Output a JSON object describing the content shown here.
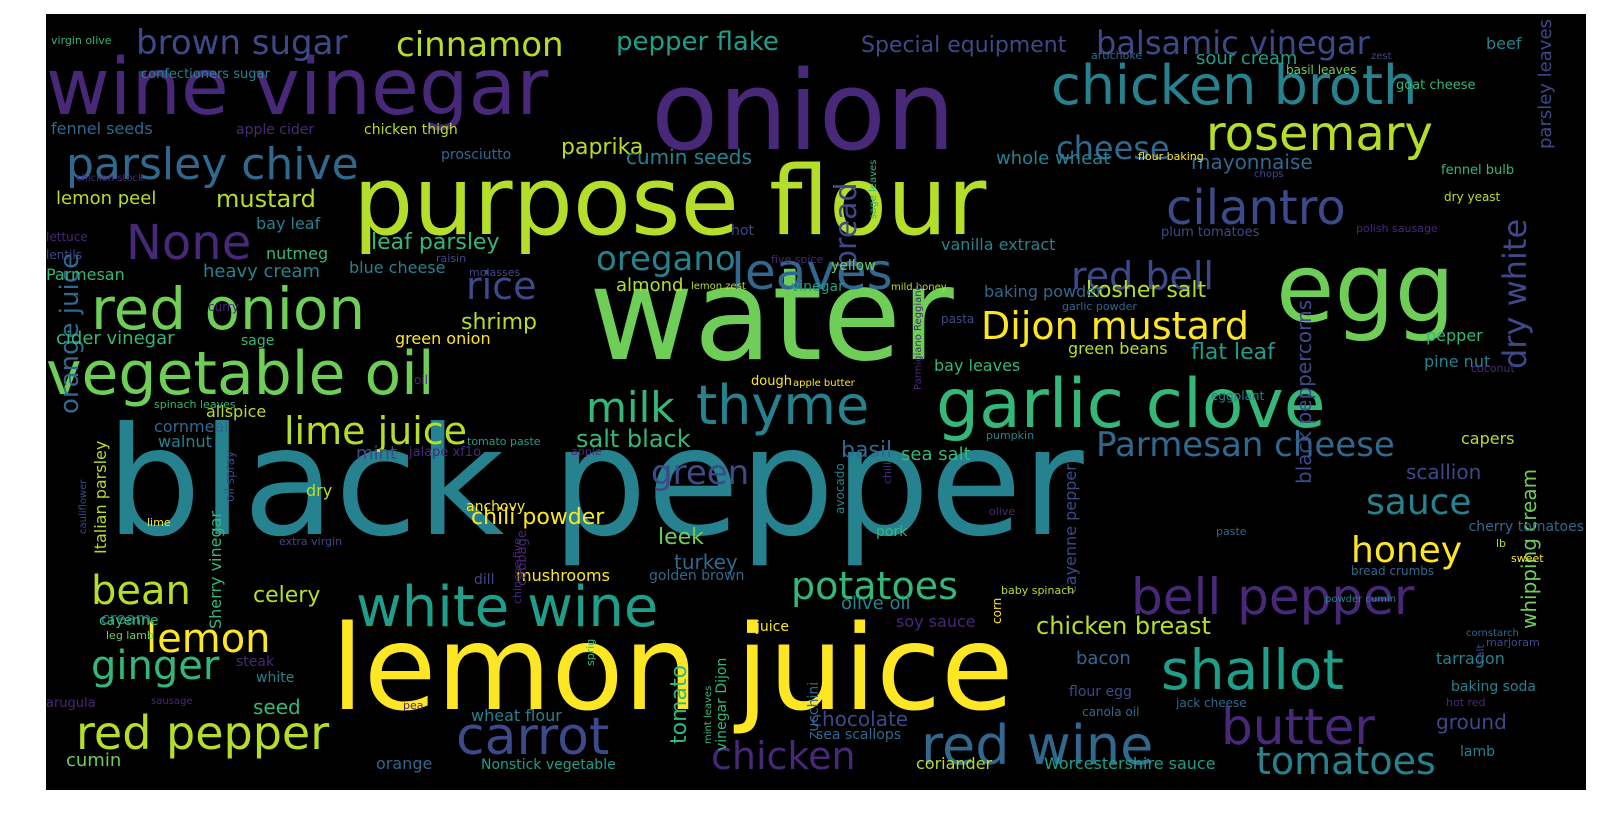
{
  "word_cloud": {
    "background": "#000000",
    "palette": [
      "#fde725",
      "#b5de2b",
      "#6ece58",
      "#35b779",
      "#1f9e89",
      "#26828e",
      "#31688e",
      "#3e4989",
      "#482878",
      "#440154"
    ],
    "words": [
      {
        "text": "black pepper",
        "color": "#26828e"
      },
      {
        "text": "lemon juice",
        "color": "#fde725"
      },
      {
        "text": "water",
        "color": "#6ece58"
      },
      {
        "text": "onion",
        "color": "#482878"
      },
      {
        "text": "egg",
        "color": "#6ece58"
      },
      {
        "text": "purpose flour",
        "color": "#b5de2b"
      },
      {
        "text": "wine vinegar",
        "color": "#482878"
      },
      {
        "text": "garlic clove",
        "color": "#35b779"
      },
      {
        "text": "vegetable oil",
        "color": "#6ece58"
      },
      {
        "text": "red onion",
        "color": "#6ece58"
      },
      {
        "text": "chicken broth",
        "color": "#26828e"
      },
      {
        "text": "white wine",
        "color": "#1f9e89"
      },
      {
        "text": "bell pepper",
        "color": "#482878"
      },
      {
        "text": "red wine",
        "color": "#31688e"
      },
      {
        "text": "shallot",
        "color": "#1f9e89"
      },
      {
        "text": "red pepper",
        "color": "#b5de2b"
      },
      {
        "text": "thyme",
        "color": "#26828e"
      },
      {
        "text": "rosemary",
        "color": "#b5de2b"
      },
      {
        "text": "carrot",
        "color": "#3e4989"
      },
      {
        "text": "butter",
        "color": "#482878"
      },
      {
        "text": "cilantro",
        "color": "#3e4989"
      },
      {
        "text": "Dijon mustard",
        "color": "#fde725"
      },
      {
        "text": "leaves",
        "color": "#31688e"
      },
      {
        "text": "red bell",
        "color": "#3e4989"
      },
      {
        "text": "Parmesan cheese",
        "color": "#31688e"
      },
      {
        "text": "parsley chive",
        "color": "#31688e"
      },
      {
        "text": "None",
        "color": "#482878"
      },
      {
        "text": "ginger",
        "color": "#35b779"
      },
      {
        "text": "lemon",
        "color": "#fde725"
      },
      {
        "text": "lime juice",
        "color": "#b5de2b"
      },
      {
        "text": "potatoes",
        "color": "#35b779"
      },
      {
        "text": "tomatoes",
        "color": "#26828e"
      },
      {
        "text": "chicken",
        "color": "#482878"
      },
      {
        "text": "milk",
        "color": "#35b779"
      },
      {
        "text": "bean",
        "color": "#b5de2b"
      },
      {
        "text": "honey",
        "color": "#fde725"
      },
      {
        "text": "sauce",
        "color": "#26828e"
      },
      {
        "text": "rice",
        "color": "#3e4989"
      },
      {
        "text": "oregano",
        "color": "#26828e"
      },
      {
        "text": "cinnamon",
        "color": "#b5de2b"
      },
      {
        "text": "brown sugar",
        "color": "#3e4989"
      },
      {
        "text": "balsamic vinegar",
        "color": "#3e4989"
      },
      {
        "text": "cheese",
        "color": "#31688e"
      },
      {
        "text": "dry white",
        "color": "#3e4989"
      },
      {
        "text": "green",
        "color": "#3e4989"
      },
      {
        "text": "bread",
        "color": "#3e4989"
      },
      {
        "text": "pepper flake",
        "color": "#1f9e89"
      },
      {
        "text": "Special equipment",
        "color": "#3e4989"
      },
      {
        "text": "chicken breast",
        "color": "#b5de2b"
      },
      {
        "text": "chili powder",
        "color": "#fde725"
      },
      {
        "text": "salt black",
        "color": "#35b779"
      },
      {
        "text": "shrimp",
        "color": "#b5de2b"
      },
      {
        "text": "mustard",
        "color": "#b5de2b"
      },
      {
        "text": "paprika",
        "color": "#b5de2b"
      },
      {
        "text": "leaf parsley",
        "color": "#35b779"
      },
      {
        "text": "kosher salt",
        "color": "#b5de2b"
      },
      {
        "text": "leek",
        "color": "#6ece58"
      },
      {
        "text": "celery",
        "color": "#b5de2b"
      },
      {
        "text": "chocolate",
        "color": "#3e4989"
      },
      {
        "text": "tomato",
        "color": "#35b779"
      },
      {
        "text": "basil",
        "color": "#31688e"
      },
      {
        "text": "turkey",
        "color": "#31688e"
      },
      {
        "text": "orange juice",
        "color": "#31688e"
      },
      {
        "text": "whipping cream",
        "color": "#6ece58"
      },
      {
        "text": "black peppercorns",
        "color": "#3e4989"
      },
      {
        "text": "parsley leaves",
        "color": "#3e4989"
      },
      {
        "text": "flat leaf",
        "color": "#1f9e89"
      },
      {
        "text": "sour cream",
        "color": "#1f9e89"
      },
      {
        "text": "mayonnaise",
        "color": "#31688e"
      },
      {
        "text": "cumin seeds",
        "color": "#26828e"
      },
      {
        "text": "whole wheat",
        "color": "#26828e"
      },
      {
        "text": "heavy cream",
        "color": "#26828e"
      },
      {
        "text": "cider vinegar",
        "color": "#35b779"
      },
      {
        "text": "lemon peel",
        "color": "#b5de2b"
      },
      {
        "text": "bay leaf",
        "color": "#26828e"
      },
      {
        "text": "nutmeg",
        "color": "#35b779"
      },
      {
        "text": "almond",
        "color": "#b5de2b"
      },
      {
        "text": "scallion",
        "color": "#3e4989"
      },
      {
        "text": "bacon",
        "color": "#31688e"
      },
      {
        "text": "ground",
        "color": "#3e4989"
      },
      {
        "text": "Worcestershire sauce",
        "color": "#1f9e89"
      },
      {
        "text": "coriander",
        "color": "#b5de2b"
      },
      {
        "text": "mushrooms",
        "color": "#fde725"
      },
      {
        "text": "seed",
        "color": "#35b779"
      },
      {
        "text": "cumin",
        "color": "#6ece58"
      },
      {
        "text": "mint",
        "color": "#3e4989"
      },
      {
        "text": "sea salt",
        "color": "#35b779"
      },
      {
        "text": "olive oil",
        "color": "#26828e"
      },
      {
        "text": "soy sauce",
        "color": "#482878"
      },
      {
        "text": "cayenne pepper",
        "color": "#3e4989"
      },
      {
        "text": "Sherry vinegar",
        "color": "#35b779"
      },
      {
        "text": "Italian parsley",
        "color": "#b5de2b"
      },
      {
        "text": "cream",
        "color": "#26828e"
      },
      {
        "text": "allspice",
        "color": "#b5de2b"
      },
      {
        "text": "cornmeal",
        "color": "#31688e"
      },
      {
        "text": "walnut",
        "color": "#26828e"
      },
      {
        "text": "orange",
        "color": "#31688e"
      },
      {
        "text": "wheat flour",
        "color": "#26828e"
      },
      {
        "text": "Nonstick vegetable",
        "color": "#1f9e89"
      },
      {
        "text": "vinegar Dijon",
        "color": "#35b779"
      },
      {
        "text": "zucchini",
        "color": "#31688e"
      },
      {
        "text": "sea scallops",
        "color": "#31688e"
      },
      {
        "text": "vanilla extract",
        "color": "#26828e"
      },
      {
        "text": "baking powder",
        "color": "#31688e"
      },
      {
        "text": "green beans",
        "color": "#b5de2b"
      },
      {
        "text": "bay leaves",
        "color": "#35b779"
      },
      {
        "text": "pepper",
        "color": "#35b779"
      },
      {
        "text": "pine nut",
        "color": "#26828e"
      },
      {
        "text": "flour egg",
        "color": "#3e4989"
      },
      {
        "text": "canola oil",
        "color": "#31688e"
      },
      {
        "text": "jack cheese",
        "color": "#31688e"
      },
      {
        "text": "tarragon",
        "color": "#26828e"
      },
      {
        "text": "baking soda",
        "color": "#26828e"
      },
      {
        "text": "lamb",
        "color": "#26828e"
      },
      {
        "text": "capers",
        "color": "#b5de2b"
      },
      {
        "text": "cherry tomatoes",
        "color": "#31688e"
      },
      {
        "text": "blue cheese",
        "color": "#26828e"
      },
      {
        "text": "green onion",
        "color": "#fde725"
      },
      {
        "text": "sage",
        "color": "#35b779"
      },
      {
        "text": "Parmesan",
        "color": "#35b779"
      },
      {
        "text": "lentils",
        "color": "#3e4989"
      },
      {
        "text": "lettuce",
        "color": "#482878"
      },
      {
        "text": "fennel seeds",
        "color": "#31688e"
      },
      {
        "text": "apple cider",
        "color": "#482878"
      },
      {
        "text": "chicken thigh",
        "color": "#b5de2b"
      },
      {
        "text": "prosciutto",
        "color": "#31688e"
      },
      {
        "text": "chicken stock",
        "color": "#482878"
      },
      {
        "text": "confectioners sugar",
        "color": "#26828e"
      },
      {
        "text": "virgin olive",
        "color": "#35b779"
      },
      {
        "text": "artichoke",
        "color": "#31688e"
      },
      {
        "text": "basil leaves",
        "color": "#6ece58"
      },
      {
        "text": "zest",
        "color": "#3e4989"
      },
      {
        "text": "goat cheese",
        "color": "#35b779"
      },
      {
        "text": "beef",
        "color": "#26828e"
      },
      {
        "text": "fennel bulb",
        "color": "#35b779"
      },
      {
        "text": "dry yeast",
        "color": "#b5de2b"
      },
      {
        "text": "flour baking",
        "color": "#fde725"
      },
      {
        "text": "chops",
        "color": "#3e4989"
      },
      {
        "text": "plum tomatoes",
        "color": "#3e4989"
      },
      {
        "text": "polish sausage",
        "color": "#482878"
      },
      {
        "text": "sage leaves",
        "color": "#35b779"
      },
      {
        "text": "hot",
        "color": "#3e4989"
      },
      {
        "text": "yellow",
        "color": "#6ece58"
      },
      {
        "text": "vinegar",
        "color": "#1f9e89"
      },
      {
        "text": "mild honey",
        "color": "#b5de2b"
      },
      {
        "text": "lemon zest",
        "color": "#b5de2b"
      },
      {
        "text": "five spice",
        "color": "#482878"
      },
      {
        "text": "raisin",
        "color": "#3e4989"
      },
      {
        "text": "molasses",
        "color": "#3e4989"
      },
      {
        "text": "curry",
        "color": "#482878"
      },
      {
        "text": "garlic powder",
        "color": "#31688e"
      },
      {
        "text": "pasta",
        "color": "#3e4989"
      },
      {
        "text": "coconut",
        "color": "#482878"
      },
      {
        "text": "Parmigiano Reggiano",
        "color": "#482878"
      },
      {
        "text": "oil",
        "color": "#482878"
      },
      {
        "text": "dough",
        "color": "#fde725"
      },
      {
        "text": "apple butter",
        "color": "#fde725"
      },
      {
        "text": "spinach leaves",
        "color": "#35b779"
      },
      {
        "text": "tomato paste",
        "color": "#1f9e89"
      },
      {
        "text": "eggplant",
        "color": "#26828e"
      },
      {
        "text": "extra virgin",
        "color": "#3e4989"
      },
      {
        "text": "jalape xf1o",
        "color": "#482878"
      },
      {
        "text": "apple",
        "color": "#482878"
      },
      {
        "text": "pumpkin",
        "color": "#26828e"
      },
      {
        "text": "chili",
        "color": "#482878"
      },
      {
        "text": "oil spray",
        "color": "#3e4989"
      },
      {
        "text": "dry",
        "color": "#b5de2b"
      },
      {
        "text": "anchovy",
        "color": "#fde725"
      },
      {
        "text": "lime",
        "color": "#fde725"
      },
      {
        "text": "cauliflower",
        "color": "#3e4989"
      },
      {
        "text": "dill",
        "color": "#3e4989"
      },
      {
        "text": "cabbage",
        "color": "#482878"
      },
      {
        "text": "chinese five",
        "color": "#482878"
      },
      {
        "text": "avocado",
        "color": "#26828e"
      },
      {
        "text": "pork",
        "color": "#35b779"
      },
      {
        "text": "olive",
        "color": "#482878"
      },
      {
        "text": "paste",
        "color": "#31688e"
      },
      {
        "text": "lb",
        "color": "#b5de2b"
      },
      {
        "text": "sweet",
        "color": "#fde725"
      },
      {
        "text": "bread crumbs",
        "color": "#31688e"
      },
      {
        "text": "golden brown",
        "color": "#31688e"
      },
      {
        "text": "cayenne",
        "color": "#35b779"
      },
      {
        "text": "leg lamb",
        "color": "#6ece58"
      },
      {
        "text": "steak",
        "color": "#482878"
      },
      {
        "text": "white",
        "color": "#26828e"
      },
      {
        "text": "arugula",
        "color": "#482878"
      },
      {
        "text": "sausage",
        "color": "#482878"
      },
      {
        "text": "pea",
        "color": "#482878"
      },
      {
        "text": "sprig",
        "color": "#35b779"
      },
      {
        "text": "juice",
        "color": "#fde725"
      },
      {
        "text": "mint leaves",
        "color": "#35b779"
      },
      {
        "text": "baby spinach",
        "color": "#b5de2b"
      },
      {
        "text": "corn",
        "color": "#fde725"
      },
      {
        "text": "powder cumin",
        "color": "#26828e"
      },
      {
        "text": "cornstarch",
        "color": "#31688e"
      },
      {
        "text": "marjoram",
        "color": "#3e4989"
      },
      {
        "text": "salt",
        "color": "#3e4989"
      },
      {
        "text": "hot red",
        "color": "#482878"
      }
    ]
  }
}
